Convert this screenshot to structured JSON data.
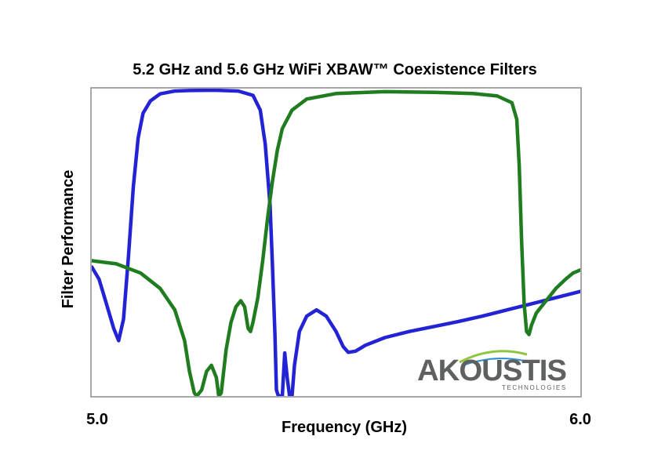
{
  "chart_data": {
    "type": "line",
    "title": "5.2 GHz and 5.6 GHz WiFi XBAW™ Coexistence Filters",
    "xlabel": "Frequency (GHz)",
    "ylabel": "Filter Performance",
    "xlim": [
      5.0,
      6.0
    ],
    "ylim": [
      0,
      100
    ],
    "x_tick_labels": [
      "5.0",
      "6.0"
    ],
    "grid": false,
    "legend": "none",
    "series": [
      {
        "color": "#2323d6",
        "points": [
          [
            5.0,
            42
          ],
          [
            5.015,
            38
          ],
          [
            5.03,
            30
          ],
          [
            5.045,
            22
          ],
          [
            5.055,
            18
          ],
          [
            5.065,
            25
          ],
          [
            5.075,
            45
          ],
          [
            5.085,
            68
          ],
          [
            5.095,
            84
          ],
          [
            5.105,
            92
          ],
          [
            5.12,
            96
          ],
          [
            5.14,
            98.3
          ],
          [
            5.17,
            99.2
          ],
          [
            5.2,
            99.4
          ],
          [
            5.25,
            99.5
          ],
          [
            5.3,
            99.2
          ],
          [
            5.33,
            97.8
          ],
          [
            5.345,
            93
          ],
          [
            5.355,
            82
          ],
          [
            5.365,
            62
          ],
          [
            5.37,
            42
          ],
          [
            5.375,
            20
          ],
          [
            5.378,
            2
          ],
          [
            5.382,
            0
          ],
          [
            5.39,
            0
          ],
          [
            5.395,
            14
          ],
          [
            5.4,
            6
          ],
          [
            5.405,
            0
          ],
          [
            5.41,
            0
          ],
          [
            5.415,
            10
          ],
          [
            5.425,
            21
          ],
          [
            5.44,
            26
          ],
          [
            5.46,
            28
          ],
          [
            5.48,
            26
          ],
          [
            5.5,
            21
          ],
          [
            5.515,
            16
          ],
          [
            5.525,
            14.2
          ],
          [
            5.54,
            14.6
          ],
          [
            5.56,
            16.5
          ],
          [
            5.6,
            19
          ],
          [
            5.65,
            21
          ],
          [
            5.7,
            22.6
          ],
          [
            5.75,
            24.2
          ],
          [
            5.8,
            26
          ],
          [
            5.85,
            28
          ],
          [
            5.9,
            30
          ],
          [
            5.95,
            32
          ],
          [
            6.0,
            34
          ]
        ]
      },
      {
        "color": "#1f7d1f",
        "points": [
          [
            5.0,
            44
          ],
          [
            5.05,
            43
          ],
          [
            5.1,
            40
          ],
          [
            5.14,
            35
          ],
          [
            5.17,
            28
          ],
          [
            5.19,
            18
          ],
          [
            5.2,
            8
          ],
          [
            5.21,
            1
          ],
          [
            5.215,
            0
          ],
          [
            5.225,
            2
          ],
          [
            5.235,
            8
          ],
          [
            5.245,
            10
          ],
          [
            5.255,
            6
          ],
          [
            5.26,
            0
          ],
          [
            5.265,
            1
          ],
          [
            5.275,
            15
          ],
          [
            5.285,
            24
          ],
          [
            5.295,
            29
          ],
          [
            5.305,
            31
          ],
          [
            5.313,
            29
          ],
          [
            5.32,
            22
          ],
          [
            5.325,
            21
          ],
          [
            5.33,
            24
          ],
          [
            5.34,
            32
          ],
          [
            5.35,
            44
          ],
          [
            5.36,
            58
          ],
          [
            5.37,
            70
          ],
          [
            5.38,
            80
          ],
          [
            5.39,
            87
          ],
          [
            5.41,
            93
          ],
          [
            5.44,
            96.6
          ],
          [
            5.5,
            98.4
          ],
          [
            5.6,
            99
          ],
          [
            5.7,
            98.8
          ],
          [
            5.78,
            98.4
          ],
          [
            5.83,
            97.6
          ],
          [
            5.86,
            95.4
          ],
          [
            5.87,
            90
          ],
          [
            5.875,
            75
          ],
          [
            5.88,
            50
          ],
          [
            5.885,
            30
          ],
          [
            5.89,
            21
          ],
          [
            5.895,
            20
          ],
          [
            5.9,
            23
          ],
          [
            5.91,
            27
          ],
          [
            5.93,
            31
          ],
          [
            5.95,
            35
          ],
          [
            5.97,
            38
          ],
          [
            5.985,
            40
          ],
          [
            6.0,
            41
          ]
        ]
      }
    ]
  },
  "logo": {
    "wordmark": "AKOUSTIS",
    "tagline": "TECHNOLOGIES",
    "swoosh_colors": [
      "#8fc63f",
      "#2a8fcf"
    ],
    "text_color": "#5e6062"
  }
}
